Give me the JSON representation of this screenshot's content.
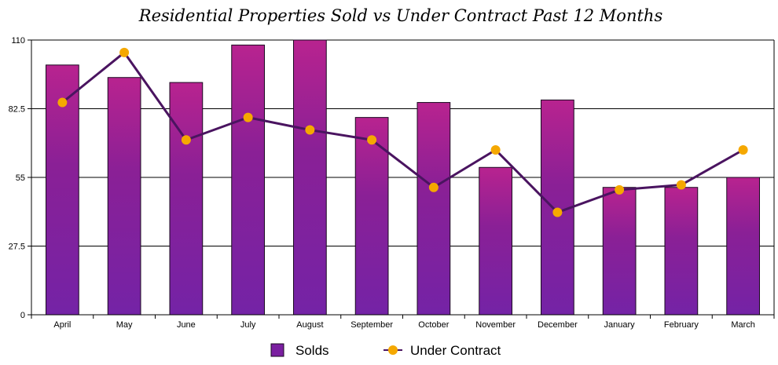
{
  "chart_data": {
    "type": "bar",
    "title": "Residential Properties Sold vs Under Contract Past 12 Months",
    "xlabel": "",
    "ylabel": "",
    "categories": [
      "April",
      "May",
      "June",
      "July",
      "August",
      "September",
      "October",
      "November",
      "December",
      "January",
      "February",
      "March"
    ],
    "yticks": [
      "0",
      "27.5",
      "55",
      "82.5",
      "110"
    ],
    "ylim": [
      0,
      110
    ],
    "grid": true,
    "legend_position": "bottom",
    "series": [
      {
        "name": "Solds",
        "kind": "bar",
        "color": "#7a1fa0",
        "values": [
          100,
          95,
          93,
          108,
          110,
          79,
          85,
          59,
          86,
          51,
          51,
          55
        ]
      },
      {
        "name": "Under Contract",
        "kind": "line",
        "color": "#f5a800",
        "line_color": "#4a1460",
        "values": [
          85,
          105,
          70,
          79,
          74,
          70,
          51,
          66,
          41,
          50,
          52,
          66
        ]
      }
    ]
  }
}
